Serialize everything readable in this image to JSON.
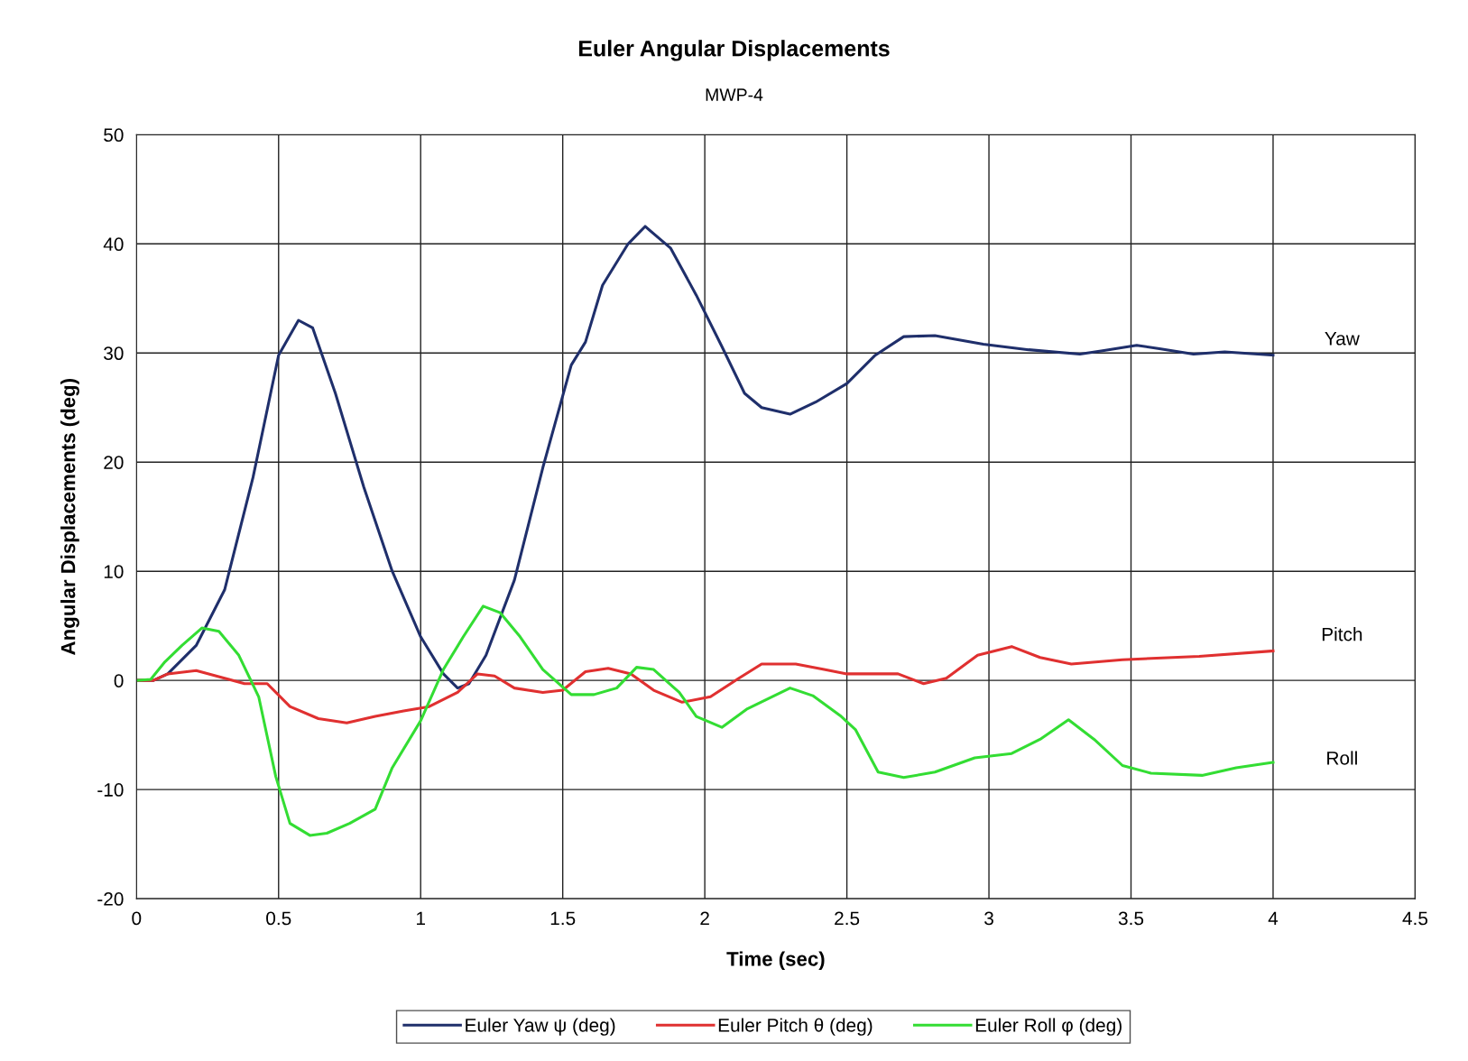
{
  "chart_data": {
    "type": "line",
    "title": "Euler Angular Displacements",
    "subtitle": "MWP-4",
    "xlabel": "Time (sec)",
    "ylabel": "Angular Displacements (deg)",
    "xlim": [
      0,
      4.5
    ],
    "ylim": [
      -20,
      50
    ],
    "xticks": [
      0,
      0.5,
      1,
      1.5,
      2,
      2.5,
      3,
      3.5,
      4,
      4.5
    ],
    "yticks": [
      -20,
      -10,
      0,
      10,
      20,
      30,
      40,
      50
    ],
    "grid": true,
    "legend": "bottom",
    "marker": "none",
    "line_style": "solid",
    "annotations": [
      "Yaw",
      "Pitch",
      "Roll"
    ],
    "series": [
      {
        "name": "Euler Yaw ψ (deg)",
        "color": "#1f2f6b",
        "x": [
          0,
          0.06,
          0.11,
          0.21,
          0.31,
          0.41,
          0.5,
          0.57,
          0.62,
          0.7,
          0.8,
          0.9,
          1.0,
          1.08,
          1.13,
          1.17,
          1.23,
          1.33,
          1.43,
          1.53,
          1.58,
          1.64,
          1.73,
          1.79,
          1.88,
          1.97,
          2.06,
          2.14,
          2.2,
          2.3,
          2.39,
          2.5,
          2.6,
          2.7,
          2.81,
          2.98,
          3.14,
          3.32,
          3.4,
          3.52,
          3.6,
          3.72,
          3.83,
          4.0
        ],
        "values": [
          0,
          0,
          0.6,
          3.2,
          8.3,
          18.6,
          29.8,
          33,
          32.3,
          26.3,
          17.7,
          10,
          4,
          0.6,
          -0.7,
          -0.3,
          2.3,
          9.2,
          19.5,
          28.9,
          31,
          36.2,
          40,
          41.6,
          39.6,
          35.3,
          30.6,
          26.3,
          25,
          24.4,
          25.5,
          27.2,
          29.8,
          31.5,
          31.6,
          30.8,
          30.3,
          29.9,
          30.2,
          30.7,
          30.4,
          29.9,
          30.1,
          29.8
        ]
      },
      {
        "name": "Euler Pitch θ (deg)",
        "color": "#e03030",
        "x": [
          0,
          0.06,
          0.11,
          0.21,
          0.31,
          0.38,
          0.46,
          0.54,
          0.64,
          0.74,
          0.84,
          0.94,
          1.03,
          1.13,
          1.2,
          1.26,
          1.33,
          1.43,
          1.5,
          1.58,
          1.66,
          1.74,
          1.82,
          1.92,
          2.02,
          2.12,
          2.2,
          2.32,
          2.42,
          2.5,
          2.68,
          2.77,
          2.85,
          2.96,
          3.08,
          3.18,
          3.29,
          3.47,
          3.74,
          4.0
        ],
        "values": [
          0,
          0,
          0.6,
          0.9,
          0.2,
          -0.3,
          -0.3,
          -2.4,
          -3.5,
          -3.9,
          -3.3,
          -2.8,
          -2.4,
          -1.1,
          0.6,
          0.4,
          -0.7,
          -1.1,
          -0.9,
          0.8,
          1.1,
          0.6,
          -0.9,
          -2,
          -1.5,
          0.2,
          1.5,
          1.5,
          1,
          0.6,
          0.6,
          -0.3,
          0.2,
          2.3,
          3.1,
          2.1,
          1.5,
          1.9,
          2.2,
          2.7
        ]
      },
      {
        "name": "Euler Roll φ (deg)",
        "color": "#33dd33",
        "x": [
          0,
          0.05,
          0.1,
          0.16,
          0.23,
          0.29,
          0.36,
          0.43,
          0.49,
          0.54,
          0.61,
          0.67,
          0.75,
          0.84,
          0.9,
          1.0,
          1.08,
          1.15,
          1.22,
          1.28,
          1.35,
          1.43,
          1.53,
          1.61,
          1.69,
          1.76,
          1.82,
          1.91,
          1.97,
          2.06,
          2.15,
          2.3,
          2.38,
          2.48,
          2.53,
          2.61,
          2.7,
          2.81,
          2.95,
          3.08,
          3.18,
          3.28,
          3.37,
          3.47,
          3.57,
          3.75,
          3.87,
          4.0
        ],
        "values": [
          0,
          0.1,
          1.7,
          3.2,
          4.8,
          4.5,
          2.3,
          -1.5,
          -8.8,
          -13.1,
          -14.2,
          -14,
          -13.1,
          -11.8,
          -8,
          -3.7,
          1,
          4,
          6.8,
          6.2,
          4,
          1,
          -1.3,
          -1.3,
          -0.7,
          1.2,
          1,
          -1.1,
          -3.3,
          -4.3,
          -2.6,
          -0.7,
          -1.4,
          -3.3,
          -4.5,
          -8.4,
          -8.9,
          -8.4,
          -7.1,
          -6.7,
          -5.4,
          -3.6,
          -5.4,
          -7.8,
          -8.5,
          -8.7,
          -8,
          -7.5
        ]
      }
    ]
  }
}
